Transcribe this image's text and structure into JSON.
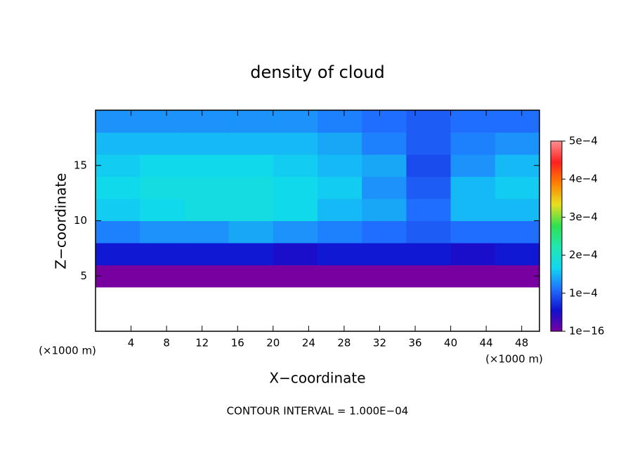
{
  "chart_data": {
    "type": "heatmap",
    "title": "density of cloud",
    "x_label": "X−coordinate",
    "y_label": "Z−coordinate",
    "x_unit_label": "(×1000 m)",
    "footnote": "CONTOUR INTERVAL = 1.000E−04",
    "x": [
      2.5,
      7.5,
      12.5,
      17.5,
      22.5,
      27.5,
      32.5,
      37.5,
      42.5,
      47.5
    ],
    "y": [
      1,
      3,
      5,
      7,
      9,
      11,
      13,
      15,
      17,
      19
    ],
    "z": [
      [
        null,
        null,
        null,
        null,
        null,
        null,
        null,
        null,
        null,
        null
      ],
      [
        null,
        null,
        null,
        null,
        null,
        null,
        null,
        null,
        null,
        null
      ],
      [
        1e-16,
        1e-16,
        1e-16,
        1e-16,
        1e-16,
        1e-16,
        1e-16,
        1e-16,
        1e-16,
        1e-16
      ],
      [
        6e-05,
        6e-05,
        6e-05,
        6e-05,
        5e-05,
        6e-05,
        6e-05,
        6e-05,
        5e-05,
        6e-05
      ],
      [
        0.00012,
        0.00013,
        0.00013,
        0.00014,
        0.00013,
        0.00012,
        0.00011,
        0.0001,
        0.00011,
        0.00011
      ],
      [
        0.00016,
        0.00017,
        0.00018,
        0.00018,
        0.00017,
        0.00015,
        0.00014,
        0.00011,
        0.00015,
        0.00015
      ],
      [
        0.00017,
        0.00018,
        0.00018,
        0.00018,
        0.00017,
        0.00016,
        0.00013,
        0.0001,
        0.00015,
        0.00016
      ],
      [
        0.00016,
        0.00017,
        0.00017,
        0.00017,
        0.00016,
        0.00015,
        0.00014,
        9e-05,
        0.00013,
        0.00015
      ],
      [
        0.00015,
        0.00015,
        0.00015,
        0.00015,
        0.00015,
        0.00014,
        0.00012,
        0.0001,
        0.00012,
        0.00013
      ],
      [
        0.00013,
        0.00013,
        0.00013,
        0.00013,
        0.00013,
        0.00012,
        0.00011,
        0.0001,
        0.00011,
        0.00011
      ]
    ],
    "xlim": [
      0,
      50
    ],
    "xticks": [
      4,
      8,
      12,
      16,
      20,
      24,
      28,
      32,
      36,
      40,
      44,
      48
    ],
    "ylim": [
      0,
      20
    ],
    "yticks": [
      5,
      10,
      15
    ],
    "clim": [
      0,
      0.0005
    ],
    "cticks": [
      {
        "value": 1e-16,
        "label": "1e−16"
      },
      {
        "value": 0.0001,
        "label": "1e−4"
      },
      {
        "value": 0.0002,
        "label": "2e−4"
      },
      {
        "value": 0.0003,
        "label": "3e−4"
      },
      {
        "value": 0.0004,
        "label": "4e−4"
      },
      {
        "value": 0.0005,
        "label": "5e−4"
      }
    ],
    "colors": [
      "#7800a0",
      "#1010d0",
      "#2070ff",
      "#10d8f0",
      "#20e8b0",
      "#30e050",
      "#e8e020",
      "#ff8000",
      "#ff2020",
      "#ff9090"
    ]
  }
}
